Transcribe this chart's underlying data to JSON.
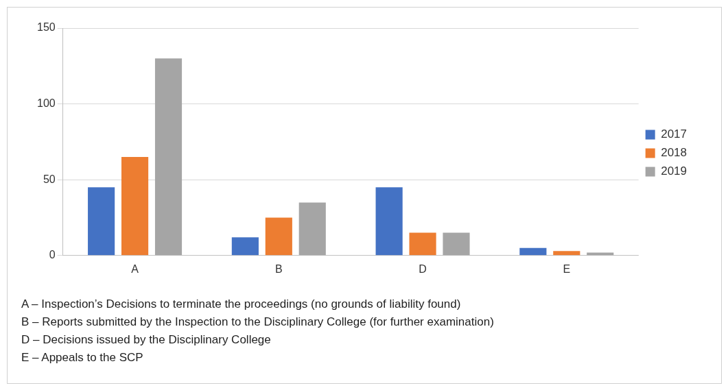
{
  "chart_data": {
    "type": "bar",
    "categories": [
      "A",
      "B",
      "D",
      "E"
    ],
    "series": [
      {
        "name": "2017",
        "color": "#4472c4",
        "values": [
          45,
          12,
          45,
          5
        ]
      },
      {
        "name": "2018",
        "color": "#ed7d31",
        "values": [
          65,
          25,
          15,
          3
        ]
      },
      {
        "name": "2019",
        "color": "#a5a5a5",
        "values": [
          130,
          35,
          15,
          2
        ]
      }
    ],
    "ylim": [
      0,
      150
    ],
    "yticks": [
      0,
      50,
      100,
      150
    ],
    "grid": "y",
    "legend": "right",
    "annotations": [
      "A – Inspection’s Decisions to terminate the proceedings (no grounds of liability found)",
      "B – Reports submitted by the Inspection to the Disciplinary College (for further examination)",
      "D – Decisions issued by the Disciplinary College",
      "E – Appeals to the SCP"
    ]
  }
}
